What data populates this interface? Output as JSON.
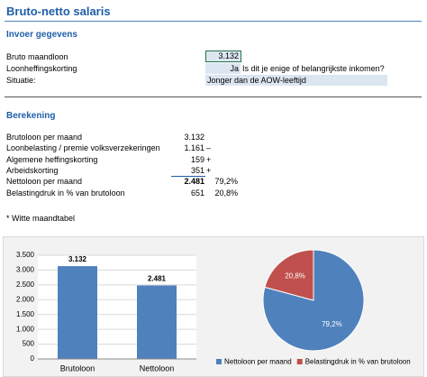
{
  "header": {
    "title": "Bruto-netto salaris"
  },
  "input": {
    "heading": "Invoer gegevens",
    "rows": [
      {
        "label": "Bruto  maandloon",
        "value": "3.132"
      },
      {
        "label": "Loonheffingskorting",
        "value": "Ja",
        "question": "Is dit je enige of belangrijkste inkomen?"
      },
      {
        "label": "Situatie:",
        "value": "Jonger dan de AOW-leeftijd"
      }
    ]
  },
  "calculation": {
    "heading": "Berekening",
    "rows": [
      {
        "label": "Brutoloon per maand",
        "value": "3.132"
      },
      {
        "label": "Loonbelasting / premie volksverzekeringen",
        "value": "1.161",
        "sign": "–"
      },
      {
        "label": "Algemene heffingskorting",
        "value": "159",
        "sign": "+"
      },
      {
        "label": "Arbeidskorting",
        "value": "351",
        "sign": "+"
      },
      {
        "label": "Nettoloon per maand",
        "value": "2.481",
        "percent": "79,2%"
      },
      {
        "label": "Belastingdruk in % van brutoloon",
        "value": "651",
        "percent": "20,8%"
      }
    ]
  },
  "note": "* Witte maandtabel",
  "chart_data": [
    {
      "type": "bar",
      "categories": [
        "Brutoloon",
        "Nettoloon"
      ],
      "values": [
        3132,
        2481
      ],
      "value_labels": [
        "3.132",
        "2.481"
      ],
      "color": "#4f81bd",
      "ylim": [
        0,
        3500
      ],
      "yticks": [
        0,
        500,
        {
          "value": 1000,
          "label": "1.000"
        },
        {
          "value": 1500,
          "label": "1.500"
        },
        {
          "value": 2000,
          "label": "2.000"
        },
        {
          "value": 2500,
          "label": "2.500"
        },
        {
          "value": 3000,
          "label": "3.000"
        },
        {
          "value": 3500,
          "label": "3.500"
        }
      ],
      "grid": true
    },
    {
      "type": "pie",
      "categories": [
        "Nettoloon per maand",
        "Belastingdruk in % van brutoloon"
      ],
      "values": [
        79.2,
        20.8
      ],
      "value_labels": [
        "79,2%",
        "20,8%"
      ],
      "colors": [
        "#4f81bd",
        "#c0504d"
      ],
      "legend": "bottom"
    }
  ]
}
